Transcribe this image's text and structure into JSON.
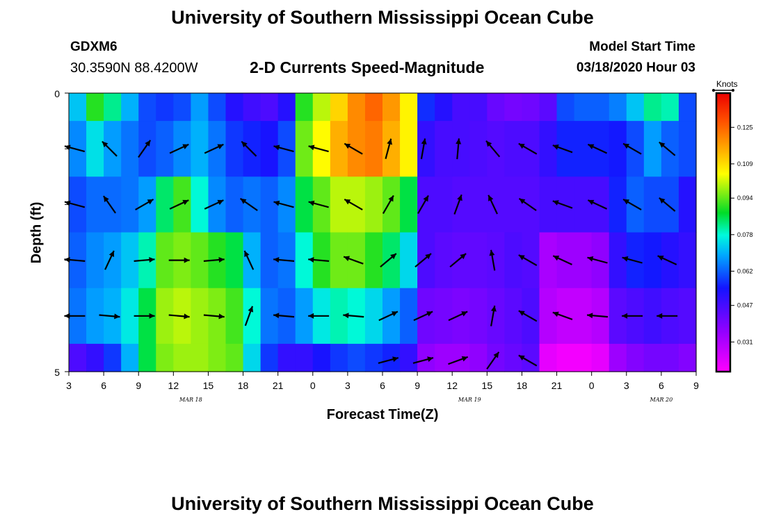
{
  "header": {
    "title": "University of Southern Mississippi Ocean Cube",
    "footer_title": "University of Southern Mississippi Ocean Cube",
    "station_id": "GDXM6",
    "coordinates": "30.3590N 88.4200W",
    "model_start_label": "Model Start Time",
    "model_start_value": "03/18/2020 Hour 03"
  },
  "chart_data": {
    "type": "heatmap",
    "title": "2-D Currents Speed-Magnitude",
    "xlabel": "Forecast Time(Z)",
    "ylabel": "Depth (ft)",
    "colorbar_unit": "Knots",
    "x_tick_labels": [
      "3",
      "6",
      "9",
      "12",
      "15",
      "18",
      "21",
      "0",
      "3",
      "6",
      "9",
      "12",
      "15",
      "18",
      "21",
      "0",
      "3",
      "6",
      "9"
    ],
    "day_labels": [
      {
        "label": "MAR 18",
        "at_hour": 10.5
      },
      {
        "label": "MAR 19",
        "at_hour": 34.5
      },
      {
        "label": "MAR 20",
        "at_hour": 51
      }
    ],
    "y_tick_labels": [
      "0",
      "5"
    ],
    "ylim": [
      0,
      5
    ],
    "x_range_hours": [
      0,
      54
    ],
    "colorbar_ticks": [
      "0.125",
      "0.109",
      "0.094",
      "0.078",
      "0.062",
      "0.047",
      "0.031"
    ],
    "colorbar_tick_values": [
      0.125,
      0.109,
      0.094,
      0.078,
      0.062,
      0.047,
      0.031
    ],
    "color_range": [
      0.018,
      0.14
    ],
    "bands": [
      {
        "name": "0-0.5 ft",
        "values": [
          0.072,
          0.09,
          0.082,
          0.07,
          0.06,
          0.058,
          0.06,
          0.068,
          0.06,
          0.052,
          0.048,
          0.046,
          0.052,
          0.09,
          0.1,
          0.11,
          0.12,
          0.125,
          0.118,
          0.106,
          0.057,
          0.052,
          0.047,
          0.047,
          0.042,
          0.04,
          0.041,
          0.044,
          0.06,
          0.062,
          0.062,
          0.065,
          0.072,
          0.082,
          0.08,
          0.06
        ]
      },
      {
        "name": "0.5-1.5 ft",
        "values": [
          0.066,
          0.075,
          0.068,
          0.064,
          0.06,
          0.062,
          0.066,
          0.07,
          0.064,
          0.058,
          0.056,
          0.054,
          0.06,
          0.095,
          0.105,
          0.115,
          0.12,
          0.122,
          0.115,
          0.106,
          0.05,
          0.047,
          0.047,
          0.046,
          0.045,
          0.046,
          0.046,
          0.05,
          0.056,
          0.056,
          0.056,
          0.055,
          0.06,
          0.068,
          0.062,
          0.06
        ]
      },
      {
        "name": "1.5-2.5 ft",
        "values": [
          0.06,
          0.063,
          0.063,
          0.064,
          0.068,
          0.084,
          0.092,
          0.078,
          0.066,
          0.062,
          0.064,
          0.062,
          0.066,
          0.086,
          0.094,
          0.1,
          0.1,
          0.098,
          0.094,
          0.086,
          0.046,
          0.046,
          0.045,
          0.045,
          0.045,
          0.045,
          0.045,
          0.047,
          0.047,
          0.047,
          0.047,
          0.056,
          0.062,
          0.06,
          0.06,
          0.052
        ]
      },
      {
        "name": "2.5-3.5 ft",
        "values": [
          0.062,
          0.066,
          0.068,
          0.072,
          0.08,
          0.094,
          0.096,
          0.094,
          0.09,
          0.086,
          0.07,
          0.062,
          0.064,
          0.078,
          0.09,
          0.095,
          0.095,
          0.09,
          0.084,
          0.074,
          0.046,
          0.044,
          0.043,
          0.043,
          0.044,
          0.046,
          0.045,
          0.032,
          0.034,
          0.034,
          0.036,
          0.05,
          0.056,
          0.055,
          0.052,
          0.05
        ]
      },
      {
        "name": "3.5-4.5 ft",
        "values": [
          0.064,
          0.068,
          0.07,
          0.076,
          0.086,
          0.098,
          0.1,
          0.098,
          0.096,
          0.092,
          0.078,
          0.064,
          0.062,
          0.068,
          0.076,
          0.08,
          0.078,
          0.074,
          0.068,
          0.062,
          0.041,
          0.04,
          0.039,
          0.04,
          0.042,
          0.044,
          0.046,
          0.03,
          0.028,
          0.028,
          0.03,
          0.044,
          0.046,
          0.048,
          0.046,
          0.045
        ]
      },
      {
        "name": "4.5-5 ft",
        "values": [
          0.046,
          0.05,
          0.058,
          0.07,
          0.086,
          0.096,
          0.098,
          0.098,
          0.096,
          0.094,
          0.074,
          0.058,
          0.05,
          0.05,
          0.054,
          0.058,
          0.06,
          0.058,
          0.056,
          0.05,
          0.036,
          0.034,
          0.034,
          0.036,
          0.04,
          0.042,
          0.044,
          0.022,
          0.02,
          0.02,
          0.022,
          0.034,
          0.038,
          0.04,
          0.04,
          0.038
        ]
      }
    ],
    "vector_hours": [
      0.5,
      3.5,
      6.5,
      9.5,
      12.5,
      15.5,
      18.5,
      21.5,
      24.5,
      27.5,
      30.5,
      33.5,
      36.5,
      39.5,
      42.5,
      45.5,
      48.5,
      51.5
    ],
    "vector_rows": [
      {
        "depth_ft": 1.0,
        "angles_deg": [
          165,
          135,
          55,
          25,
          25,
          135,
          165,
          165,
          150,
          75,
          80,
          85,
          130,
          150,
          160,
          155,
          150,
          140
        ]
      },
      {
        "depth_ft": 2.0,
        "angles_deg": [
          165,
          125,
          30,
          25,
          25,
          145,
          165,
          165,
          150,
          60,
          60,
          70,
          115,
          145,
          160,
          155,
          150,
          140
        ]
      },
      {
        "depth_ft": 3.0,
        "angles_deg": [
          175,
          65,
          5,
          0,
          5,
          115,
          175,
          175,
          160,
          40,
          40,
          40,
          100,
          150,
          155,
          165,
          165,
          155
        ]
      },
      {
        "depth_ft": 4.0,
        "angles_deg": [
          180,
          355,
          0,
          355,
          355,
          70,
          175,
          180,
          175,
          25,
          25,
          25,
          80,
          150,
          160,
          175,
          180,
          180
        ]
      },
      {
        "depth_ft": 4.8,
        "angles_deg": [
          null,
          null,
          null,
          null,
          null,
          null,
          null,
          null,
          null,
          15,
          15,
          20,
          55,
          150,
          null,
          null,
          null,
          null
        ]
      }
    ]
  }
}
